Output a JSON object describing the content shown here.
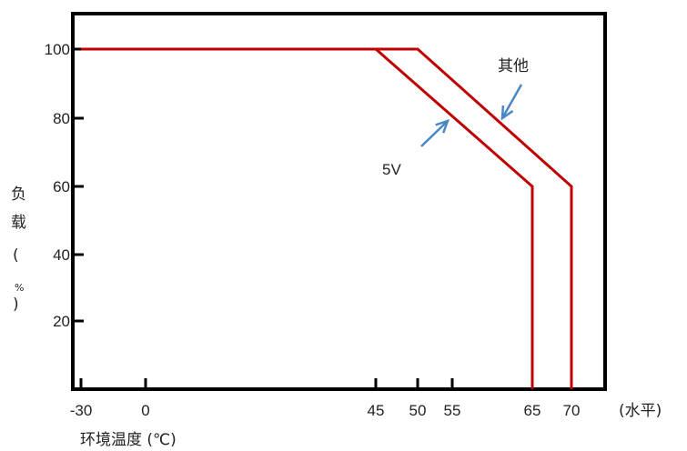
{
  "chart_data": {
    "type": "line",
    "x_ticks": [
      -30,
      0,
      45,
      50,
      55,
      65,
      70
    ],
    "y_ticks": [
      20,
      40,
      60,
      80,
      100
    ],
    "xlim": [
      -30,
      70
    ],
    "ylim": [
      0,
      110
    ],
    "xlabel": "环境温度 (℃)",
    "xlabel_suffix": "(水平)",
    "ylabel_chars": [
      "负",
      "载",
      "(",
      "%",
      ")"
    ],
    "grid": false,
    "line_color": "#c00000",
    "arrow_color": "#4a86c8",
    "series": [
      {
        "name": "5V",
        "x": [
          -30,
          45,
          65,
          65
        ],
        "y": [
          100,
          100,
          60,
          0
        ]
      },
      {
        "name": "其他",
        "x": [
          -30,
          50,
          70,
          70
        ],
        "y": [
          100,
          100,
          60,
          0
        ]
      }
    ]
  }
}
